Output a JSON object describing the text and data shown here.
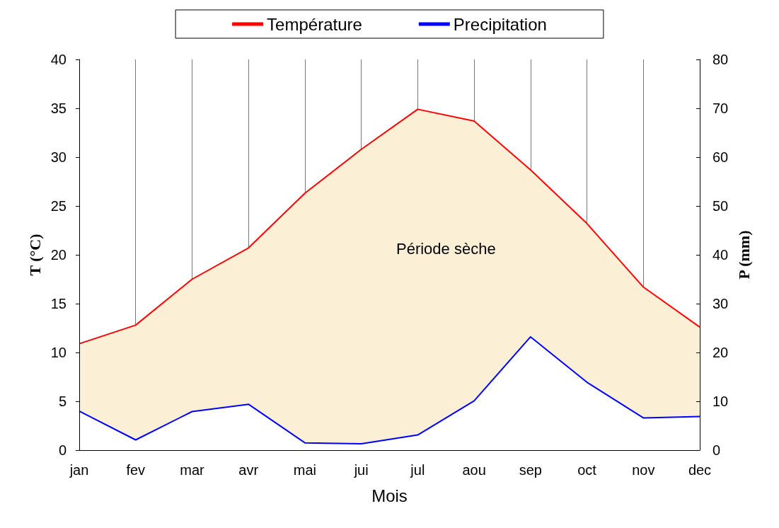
{
  "chart_data": {
    "type": "area",
    "xlabel": "Mois",
    "ylabel": "T (°C)",
    "y2label": "P (mm)",
    "categories": [
      "jan",
      "fev",
      "mar",
      "avr",
      "mai",
      "jui",
      "jul",
      "aou",
      "sep",
      "oct",
      "nov",
      "dec"
    ],
    "series": [
      {
        "name": "Température",
        "color": "#ff0000",
        "values": [
          10.9,
          12.8,
          17.5,
          20.7,
          26.3,
          30.8,
          34.9,
          33.7,
          28.7,
          23.2,
          16.7,
          12.6
        ]
      },
      {
        "name": "Precipitation",
        "color": "#0000ff",
        "axis": "y2",
        "values": [
          8.0,
          2.1,
          7.9,
          9.4,
          1.5,
          1.3,
          3.1,
          10.1,
          23.2,
          13.9,
          6.6,
          6.9
        ]
      }
    ],
    "ylim": [
      0,
      40
    ],
    "yticks": [
      0,
      5,
      10,
      15,
      20,
      25,
      30,
      35,
      40
    ],
    "y2lim": [
      0,
      80
    ],
    "y2ticks": [
      0,
      10,
      20,
      30,
      40,
      50,
      60,
      70,
      80
    ],
    "annotations": [
      "Période sèche"
    ],
    "grid": "x",
    "legend": "top",
    "marker": "none",
    "line_style": "solid"
  }
}
